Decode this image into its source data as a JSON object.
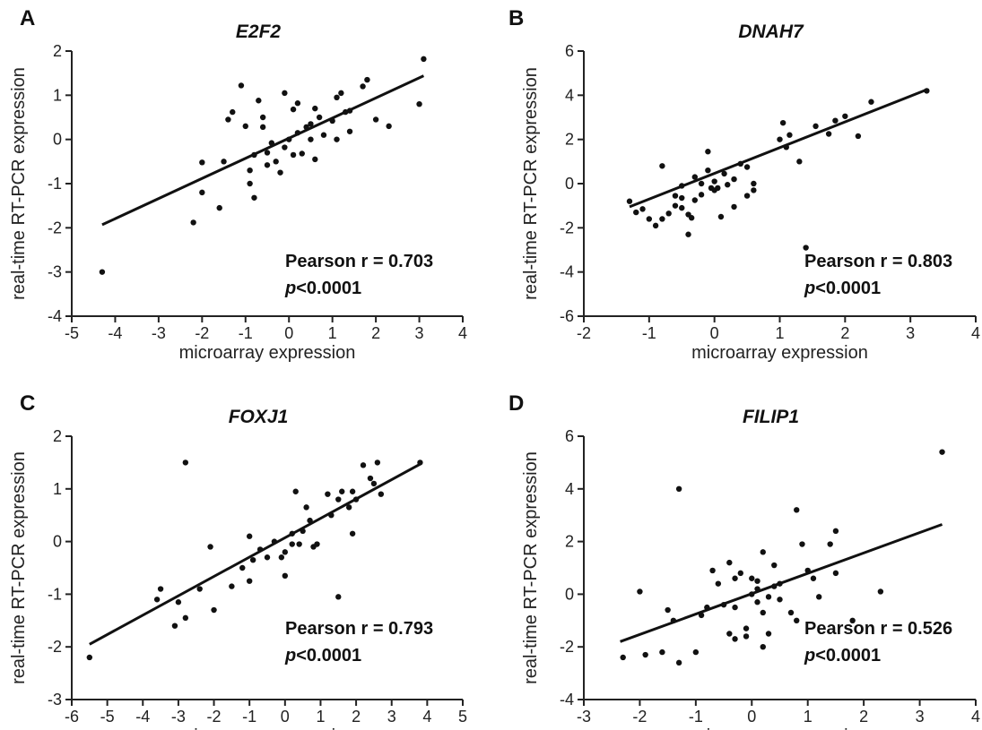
{
  "chart_data": [
    {
      "type": "scatter",
      "panel": "A",
      "title": "E2F2",
      "xlabel": "microarray expression",
      "ylabel": "real-time RT-PCR expression",
      "xlim": [
        -5,
        4
      ],
      "ylim": [
        -4,
        2
      ],
      "xticks": [
        "-5",
        "-4",
        "-3",
        "-2",
        "-1",
        "0",
        "1",
        "2",
        "3",
        "4"
      ],
      "yticks": [
        "-4",
        "-3",
        "-2",
        "-1",
        "0",
        "1",
        "2"
      ],
      "pearson_label": "Pearson r = 0.703",
      "p_prefix": "p",
      "p_suffix": "<0.0001",
      "fit": [
        [
          -4.3,
          -1.93
        ],
        [
          3.1,
          1.44
        ]
      ],
      "points": [
        [
          -4.3,
          -3.0
        ],
        [
          -2.2,
          -1.88
        ],
        [
          -2.0,
          -1.2
        ],
        [
          -2.0,
          -0.52
        ],
        [
          -1.6,
          -1.55
        ],
        [
          -1.5,
          -0.5
        ],
        [
          -1.4,
          0.45
        ],
        [
          -1.3,
          0.62
        ],
        [
          -1.1,
          1.22
        ],
        [
          -1.0,
          0.3
        ],
        [
          -0.9,
          -0.7
        ],
        [
          -0.9,
          -1.0
        ],
        [
          -0.8,
          -1.32
        ],
        [
          -0.8,
          -0.35
        ],
        [
          -0.7,
          0.88
        ],
        [
          -0.6,
          0.5
        ],
        [
          -0.6,
          0.28
        ],
        [
          -0.5,
          -0.58
        ],
        [
          -0.5,
          -0.3
        ],
        [
          -0.4,
          -0.08
        ],
        [
          -0.3,
          -0.5
        ],
        [
          -0.2,
          -0.75
        ],
        [
          -0.1,
          1.05
        ],
        [
          -0.1,
          -0.18
        ],
        [
          0.0,
          0.0
        ],
        [
          0.1,
          0.68
        ],
        [
          0.1,
          -0.35
        ],
        [
          0.2,
          0.82
        ],
        [
          0.2,
          0.15
        ],
        [
          0.3,
          -0.32
        ],
        [
          0.4,
          0.28
        ],
        [
          0.5,
          0.35
        ],
        [
          0.5,
          0.0
        ],
        [
          0.6,
          -0.45
        ],
        [
          0.6,
          0.7
        ],
        [
          0.7,
          0.5
        ],
        [
          0.8,
          0.1
        ],
        [
          1.0,
          0.42
        ],
        [
          1.1,
          0.0
        ],
        [
          1.1,
          0.95
        ],
        [
          1.2,
          1.05
        ],
        [
          1.3,
          0.62
        ],
        [
          1.4,
          0.65
        ],
        [
          1.4,
          0.18
        ],
        [
          1.7,
          1.2
        ],
        [
          1.8,
          1.35
        ],
        [
          2.0,
          0.45
        ],
        [
          2.3,
          0.3
        ],
        [
          3.0,
          0.8
        ],
        [
          3.1,
          1.82
        ]
      ]
    },
    {
      "type": "scatter",
      "panel": "B",
      "title": "DNAH7",
      "xlabel": "microarray expression",
      "ylabel": "real-time RT-PCR expression",
      "xlim": [
        -2,
        4
      ],
      "ylim": [
        -6,
        6
      ],
      "xticks": [
        "-2",
        "-1",
        "0",
        "1",
        "2",
        "3",
        "4"
      ],
      "yticks": [
        "-6",
        "-4",
        "-2",
        "0",
        "2",
        "4",
        "6"
      ],
      "pearson_label": "Pearson r = 0.803",
      "p_prefix": "p",
      "p_suffix": "<0.0001",
      "fit": [
        [
          -1.3,
          -1.05
        ],
        [
          3.25,
          4.25
        ]
      ],
      "points": [
        [
          -1.3,
          -0.8
        ],
        [
          -1.2,
          -1.3
        ],
        [
          -1.1,
          -1.15
        ],
        [
          -1.0,
          -1.6
        ],
        [
          -0.9,
          -1.9
        ],
        [
          -0.8,
          -1.6
        ],
        [
          -0.8,
          0.8
        ],
        [
          -0.7,
          -1.35
        ],
        [
          -0.6,
          -1.0
        ],
        [
          -0.6,
          -0.55
        ],
        [
          -0.5,
          -1.1
        ],
        [
          -0.5,
          -0.65
        ],
        [
          -0.5,
          -0.1
        ],
        [
          -0.4,
          -1.4
        ],
        [
          -0.4,
          -2.3
        ],
        [
          -0.35,
          -1.55
        ],
        [
          -0.3,
          -0.75
        ],
        [
          -0.3,
          0.3
        ],
        [
          -0.2,
          0.0
        ],
        [
          -0.2,
          -0.5
        ],
        [
          -0.1,
          0.6
        ],
        [
          -0.1,
          1.45
        ],
        [
          -0.05,
          -0.2
        ],
        [
          0.0,
          -0.3
        ],
        [
          0.0,
          0.1
        ],
        [
          0.05,
          -0.2
        ],
        [
          0.1,
          -1.5
        ],
        [
          0.15,
          0.45
        ],
        [
          0.2,
          -0.05
        ],
        [
          0.3,
          0.2
        ],
        [
          0.3,
          -1.05
        ],
        [
          0.4,
          0.9
        ],
        [
          0.5,
          0.75
        ],
        [
          0.5,
          -0.55
        ],
        [
          0.6,
          -0.3
        ],
        [
          0.6,
          0.0
        ],
        [
          1.0,
          2.0
        ],
        [
          1.05,
          2.75
        ],
        [
          1.1,
          1.65
        ],
        [
          1.15,
          2.2
        ],
        [
          1.3,
          1.0
        ],
        [
          1.4,
          -2.9
        ],
        [
          1.55,
          2.6
        ],
        [
          1.75,
          2.25
        ],
        [
          1.85,
          2.85
        ],
        [
          2.0,
          3.05
        ],
        [
          2.2,
          2.15
        ],
        [
          2.4,
          3.7
        ],
        [
          3.25,
          4.2
        ]
      ]
    },
    {
      "type": "scatter",
      "panel": "C",
      "title": "FOXJ1",
      "xlabel": "microarray expression",
      "ylabel": "real-time RT-PCR expression",
      "xlim": [
        -6,
        5
      ],
      "ylim": [
        -3,
        2
      ],
      "xticks": [
        "-6",
        "-5",
        "-4",
        "-3",
        "-2",
        "-1",
        "0",
        "1",
        "2",
        "3",
        "4",
        "5"
      ],
      "yticks": [
        "-3",
        "-2",
        "-1",
        "0",
        "1",
        "2"
      ],
      "pearson_label": "Pearson r = 0.793",
      "p_prefix": "p",
      "p_suffix": "<0.0001",
      "fit": [
        [
          -5.5,
          -1.95
        ],
        [
          3.8,
          1.47
        ]
      ],
      "points": [
        [
          -5.5,
          -2.2
        ],
        [
          -3.6,
          -1.1
        ],
        [
          -3.5,
          -0.9
        ],
        [
          -3.1,
          -1.6
        ],
        [
          -3.0,
          -1.15
        ],
        [
          -2.8,
          -1.45
        ],
        [
          -2.8,
          1.5
        ],
        [
          -2.4,
          -0.9
        ],
        [
          -2.1,
          -0.1
        ],
        [
          -2.0,
          -1.3
        ],
        [
          -1.5,
          -0.85
        ],
        [
          -1.2,
          -0.5
        ],
        [
          -1.0,
          -0.75
        ],
        [
          -1.0,
          0.1
        ],
        [
          -0.9,
          -0.35
        ],
        [
          -0.7,
          -0.15
        ],
        [
          -0.5,
          -0.3
        ],
        [
          -0.3,
          0.0
        ],
        [
          -0.1,
          -0.3
        ],
        [
          0.0,
          -0.65
        ],
        [
          0.0,
          -0.2
        ],
        [
          0.2,
          0.15
        ],
        [
          0.2,
          -0.05
        ],
        [
          0.3,
          0.95
        ],
        [
          0.4,
          -0.05
        ],
        [
          0.5,
          0.2
        ],
        [
          0.6,
          0.65
        ],
        [
          0.7,
          0.4
        ],
        [
          0.8,
          -0.1
        ],
        [
          0.9,
          -0.05
        ],
        [
          1.2,
          0.9
        ],
        [
          1.3,
          0.5
        ],
        [
          1.5,
          -1.05
        ],
        [
          1.5,
          0.8
        ],
        [
          1.6,
          0.95
        ],
        [
          1.8,
          0.65
        ],
        [
          1.9,
          0.15
        ],
        [
          1.9,
          0.95
        ],
        [
          2.0,
          0.8
        ],
        [
          2.2,
          1.45
        ],
        [
          2.4,
          1.2
        ],
        [
          2.5,
          1.1
        ],
        [
          2.6,
          1.5
        ],
        [
          2.7,
          0.9
        ],
        [
          3.8,
          1.5
        ]
      ]
    },
    {
      "type": "scatter",
      "panel": "D",
      "title": "FILIP1",
      "xlabel": "microarray expression",
      "ylabel": "real-time RT-PCR expression",
      "xlim": [
        -3,
        4
      ],
      "ylim": [
        -4,
        6
      ],
      "xticks": [
        "-3",
        "-2",
        "-1",
        "0",
        "1",
        "2",
        "3",
        "4"
      ],
      "yticks": [
        "-4",
        "-2",
        "0",
        "2",
        "4",
        "6"
      ],
      "pearson_label": "Pearson r = 0.526",
      "p_prefix": "p",
      "p_suffix": "<0.0001",
      "fit": [
        [
          -2.35,
          -1.8
        ],
        [
          3.4,
          2.65
        ]
      ],
      "points": [
        [
          -2.3,
          -2.4
        ],
        [
          -2.0,
          0.1
        ],
        [
          -1.9,
          -2.3
        ],
        [
          -1.6,
          -2.2
        ],
        [
          -1.5,
          -0.6
        ],
        [
          -1.4,
          -1.0
        ],
        [
          -1.3,
          -2.6
        ],
        [
          -1.3,
          4.0
        ],
        [
          -1.0,
          -2.2
        ],
        [
          -0.9,
          -0.8
        ],
        [
          -0.8,
          -0.5
        ],
        [
          -0.7,
          0.9
        ],
        [
          -0.6,
          0.4
        ],
        [
          -0.5,
          -0.4
        ],
        [
          -0.4,
          1.2
        ],
        [
          -0.4,
          -1.5
        ],
        [
          -0.3,
          -1.7
        ],
        [
          -0.3,
          -0.5
        ],
        [
          -0.3,
          0.6
        ],
        [
          -0.2,
          0.8
        ],
        [
          -0.1,
          -1.6
        ],
        [
          -0.1,
          -1.3
        ],
        [
          0.0,
          0.0
        ],
        [
          0.0,
          0.6
        ],
        [
          0.1,
          0.5
        ],
        [
          0.1,
          -0.3
        ],
        [
          0.1,
          0.2
        ],
        [
          0.2,
          1.6
        ],
        [
          0.2,
          -0.7
        ],
        [
          0.2,
          -2.0
        ],
        [
          0.3,
          -1.5
        ],
        [
          0.3,
          -0.1
        ],
        [
          0.4,
          1.1
        ],
        [
          0.4,
          0.3
        ],
        [
          0.5,
          -0.2
        ],
        [
          0.5,
          0.4
        ],
        [
          0.7,
          -0.7
        ],
        [
          0.8,
          3.2
        ],
        [
          0.8,
          -1.0
        ],
        [
          0.9,
          1.9
        ],
        [
          1.0,
          0.9
        ],
        [
          1.1,
          0.6
        ],
        [
          1.2,
          -0.1
        ],
        [
          1.4,
          1.9
        ],
        [
          1.5,
          0.8
        ],
        [
          1.5,
          2.4
        ],
        [
          1.8,
          -1.0
        ],
        [
          2.3,
          0.1
        ],
        [
          3.4,
          5.4
        ]
      ]
    }
  ]
}
